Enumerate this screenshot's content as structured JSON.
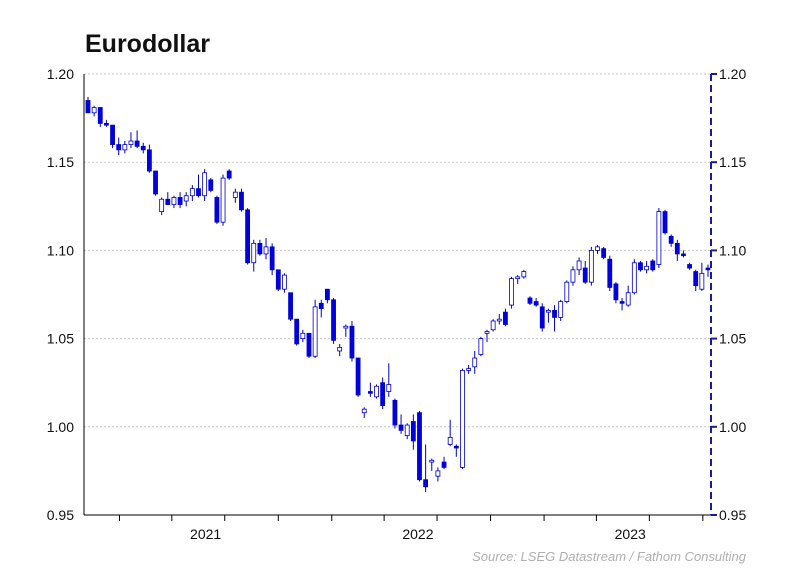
{
  "chart_data": {
    "type": "candlestick",
    "title": "Eurodollar",
    "source": "Source: LSEG Datastream / Fathom Consulting",
    "y_axis": {
      "min": 0.95,
      "max": 1.2,
      "ticks": [
        "0.95",
        "1.00",
        "1.05",
        "1.10",
        "1.15",
        "1.20"
      ],
      "grid": true
    },
    "y_axis_right": {
      "ticks": [
        "0.95",
        "1.00",
        "1.05",
        "1.10",
        "1.15",
        "1.20"
      ]
    },
    "x_axis": {
      "labels": [
        "2021",
        "2022",
        "2023"
      ],
      "start": "2020-11-01",
      "end": "2023-10-15"
    },
    "colors": {
      "up": "#ffffff",
      "down": "#0000e0",
      "outline": "#0000cc",
      "grid": "#c8c8c8",
      "axis": "#000000"
    },
    "candles": [
      [
        1.185,
        1.187,
        1.178,
        1.178
      ],
      [
        1.178,
        1.182,
        1.176,
        1.181
      ],
      [
        1.181,
        1.181,
        1.17,
        1.172
      ],
      [
        1.172,
        1.174,
        1.17,
        1.171
      ],
      [
        1.171,
        1.171,
        1.158,
        1.16
      ],
      [
        1.16,
        1.164,
        1.154,
        1.157
      ],
      [
        1.157,
        1.162,
        1.155,
        1.16
      ],
      [
        1.16,
        1.167,
        1.158,
        1.162
      ],
      [
        1.162,
        1.168,
        1.158,
        1.159
      ],
      [
        1.159,
        1.161,
        1.155,
        1.157
      ],
      [
        1.157,
        1.16,
        1.144,
        1.145
      ],
      [
        1.145,
        1.145,
        1.131,
        1.132
      ],
      [
        1.122,
        1.13,
        1.12,
        1.129
      ],
      [
        1.129,
        1.133,
        1.126,
        1.126
      ],
      [
        1.126,
        1.131,
        1.124,
        1.13
      ],
      [
        1.13,
        1.133,
        1.124,
        1.126
      ],
      [
        1.128,
        1.133,
        1.125,
        1.131
      ],
      [
        1.131,
        1.137,
        1.128,
        1.135
      ],
      [
        1.135,
        1.143,
        1.13,
        1.131
      ],
      [
        1.131,
        1.146,
        1.128,
        1.144
      ],
      [
        1.14,
        1.141,
        1.133,
        1.134
      ],
      [
        1.13,
        1.131,
        1.115,
        1.116
      ],
      [
        1.116,
        1.143,
        1.114,
        1.141
      ],
      [
        1.145,
        1.146,
        1.14,
        1.141
      ],
      [
        1.13,
        1.135,
        1.127,
        1.133
      ],
      [
        1.133,
        1.135,
        1.122,
        1.123
      ],
      [
        1.123,
        1.124,
        1.092,
        1.093
      ],
      [
        1.093,
        1.106,
        1.088,
        1.104
      ],
      [
        1.104,
        1.106,
        1.097,
        1.098
      ],
      [
        1.098,
        1.107,
        1.095,
        1.102
      ],
      [
        1.102,
        1.104,
        1.086,
        1.089
      ],
      [
        1.089,
        1.089,
        1.077,
        1.078
      ],
      [
        1.078,
        1.087,
        1.076,
        1.086
      ],
      [
        1.076,
        1.076,
        1.06,
        1.061
      ],
      [
        1.061,
        1.061,
        1.046,
        1.047
      ],
      [
        1.05,
        1.055,
        1.048,
        1.053
      ],
      [
        1.053,
        1.053,
        1.039,
        1.04
      ],
      [
        1.04,
        1.072,
        1.039,
        1.068
      ],
      [
        1.07,
        1.072,
        1.062,
        1.067
      ],
      [
        1.078,
        1.078,
        1.07,
        1.072
      ],
      [
        1.072,
        1.073,
        1.047,
        1.049
      ],
      [
        1.043,
        1.047,
        1.04,
        1.045
      ],
      [
        1.056,
        1.058,
        1.051,
        1.057
      ],
      [
        1.057,
        1.06,
        1.037,
        1.039
      ],
      [
        1.039,
        1.039,
        1.017,
        1.018
      ],
      [
        1.008,
        1.011,
        1.005,
        1.01
      ],
      [
        1.02,
        1.025,
        1.017,
        1.019
      ],
      [
        1.017,
        1.024,
        1.016,
        1.023
      ],
      [
        1.025,
        1.028,
        1.01,
        1.012
      ],
      [
        1.02,
        1.036,
        1.017,
        1.024
      ],
      [
        1.015,
        1.016,
        0.999,
        1.001
      ],
      [
        1.001,
        1.007,
        0.996,
        0.998
      ],
      [
        0.995,
        1.002,
        0.993,
        1.001
      ],
      [
        1.003,
        1.007,
        0.987,
        0.992
      ],
      [
        1.008,
        1.009,
        0.969,
        0.97
      ],
      [
        0.97,
        0.99,
        0.963,
        0.966
      ],
      [
        0.98,
        0.982,
        0.975,
        0.981
      ],
      [
        0.972,
        0.977,
        0.969,
        0.975
      ],
      [
        0.98,
        0.983,
        0.976,
        0.977
      ],
      [
        0.99,
        1.004,
        0.989,
        0.994
      ],
      [
        0.989,
        0.99,
        0.983,
        0.988
      ],
      [
        0.977,
        1.033,
        0.976,
        1.032
      ],
      [
        1.032,
        1.035,
        1.03,
        1.033
      ],
      [
        1.034,
        1.043,
        1.03,
        1.039
      ],
      [
        1.041,
        1.051,
        1.04,
        1.05
      ],
      [
        1.053,
        1.055,
        1.048,
        1.054
      ],
      [
        1.055,
        1.061,
        1.054,
        1.06
      ],
      [
        1.06,
        1.064,
        1.058,
        1.061
      ],
      [
        1.065,
        1.067,
        1.057,
        1.058
      ],
      [
        1.069,
        1.085,
        1.067,
        1.084
      ],
      [
        1.084,
        1.086,
        1.081,
        1.085
      ],
      [
        1.085,
        1.089,
        1.084,
        1.088
      ],
      [
        1.073,
        1.074,
        1.069,
        1.07
      ],
      [
        1.071,
        1.073,
        1.068,
        1.069
      ],
      [
        1.068,
        1.07,
        1.054,
        1.056
      ],
      [
        1.065,
        1.067,
        1.059,
        1.066
      ],
      [
        1.066,
        1.069,
        1.054,
        1.062
      ],
      [
        1.062,
        1.072,
        1.06,
        1.071
      ],
      [
        1.071,
        1.083,
        1.07,
        1.082
      ],
      [
        1.082,
        1.091,
        1.08,
        1.089
      ],
      [
        1.089,
        1.096,
        1.086,
        1.094
      ],
      [
        1.09,
        1.094,
        1.081,
        1.082
      ],
      [
        1.082,
        1.102,
        1.08,
        1.1
      ],
      [
        1.1,
        1.103,
        1.098,
        1.102
      ],
      [
        1.101,
        1.102,
        1.095,
        1.096
      ],
      [
        1.095,
        1.097,
        1.077,
        1.079
      ],
      [
        1.081,
        1.082,
        1.07,
        1.072
      ],
      [
        1.071,
        1.073,
        1.066,
        1.07
      ],
      [
        1.069,
        1.08,
        1.068,
        1.076
      ],
      [
        1.076,
        1.095,
        1.075,
        1.093
      ],
      [
        1.093,
        1.094,
        1.088,
        1.089
      ],
      [
        1.089,
        1.094,
        1.087,
        1.091
      ],
      [
        1.094,
        1.095,
        1.088,
        1.089
      ],
      [
        1.092,
        1.124,
        1.09,
        1.122
      ],
      [
        1.122,
        1.123,
        1.109,
        1.11
      ],
      [
        1.108,
        1.109,
        1.102,
        1.104
      ],
      [
        1.104,
        1.106,
        1.094,
        1.098
      ],
      [
        1.098,
        1.1,
        1.096,
        1.097
      ],
      [
        1.092,
        1.093,
        1.089,
        1.09
      ],
      [
        1.088,
        1.089,
        1.077,
        1.08
      ],
      [
        1.078,
        1.093,
        1.077,
        1.087
      ],
      [
        1.09,
        1.092,
        1.085,
        1.089
      ]
    ]
  }
}
